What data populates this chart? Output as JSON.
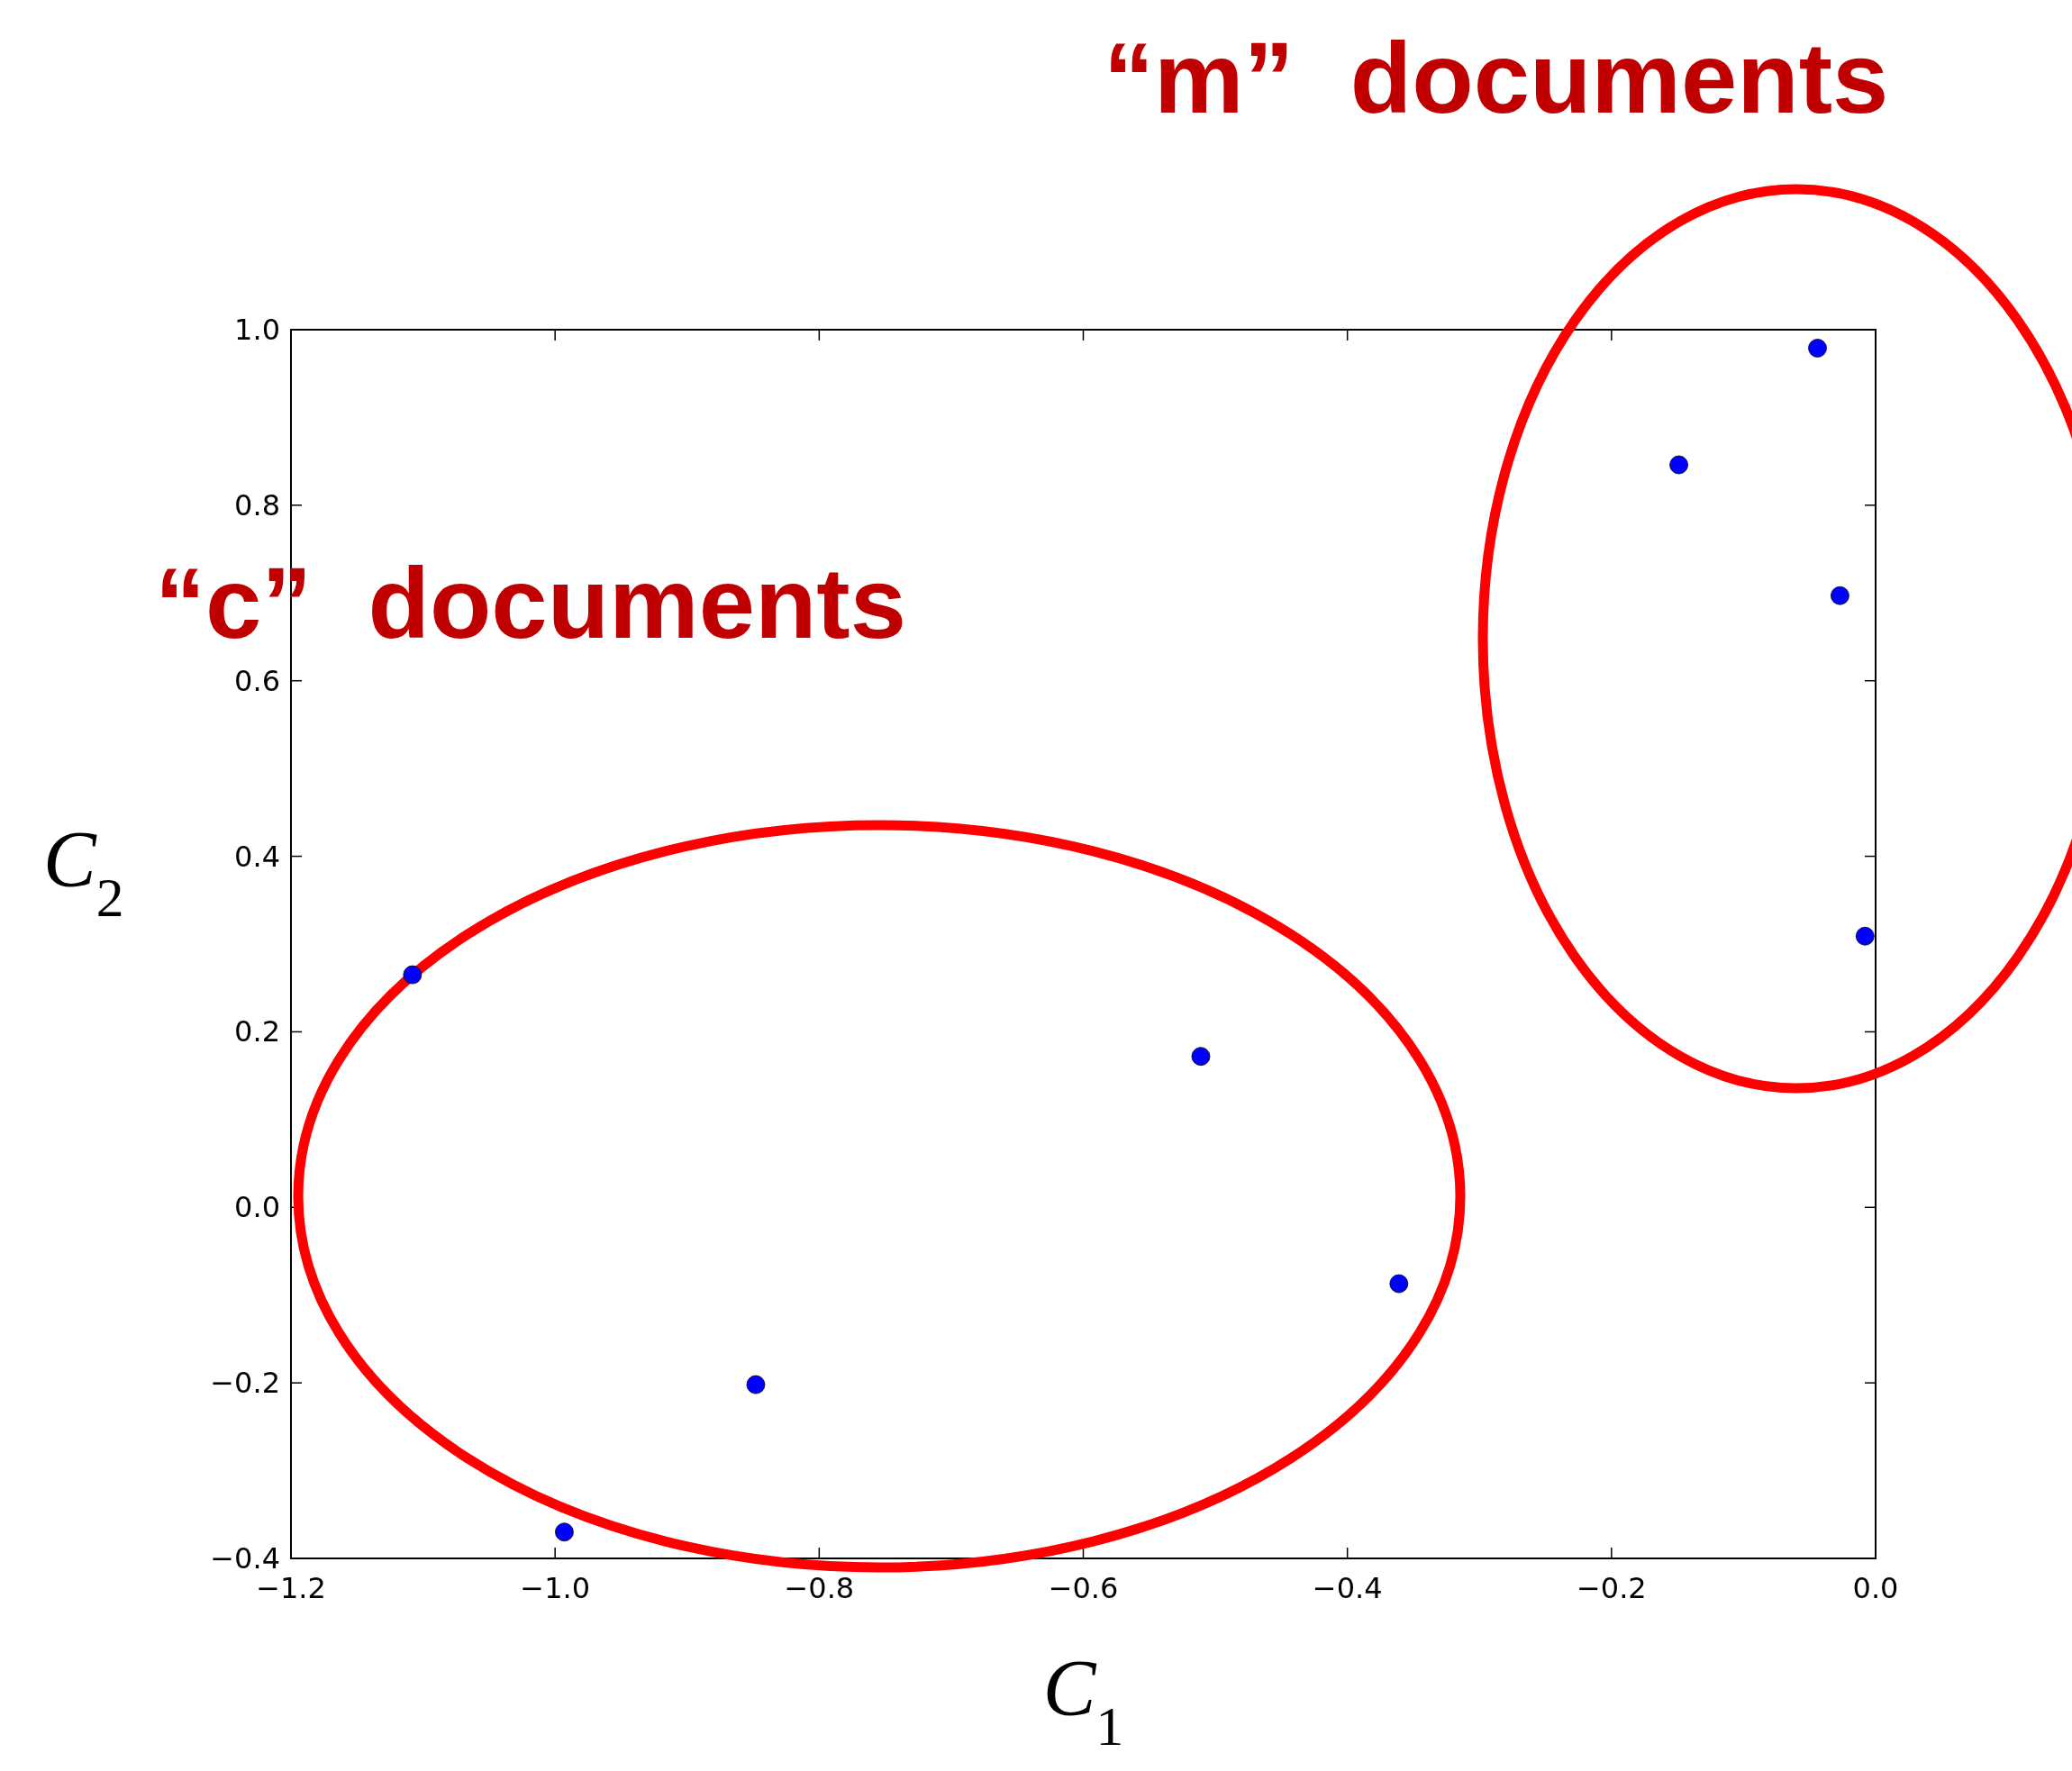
{
  "chart_data": {
    "type": "scatter",
    "xlabel": "C$_{1}$",
    "ylabel": "C$_{2}$",
    "x": [
      -1.108,
      -0.993,
      -0.848,
      -0.511,
      -0.361,
      -0.149,
      -0.044,
      -0.027,
      -0.008
    ],
    "series": [
      {
        "color": "#0000ff",
        "values": [
          0.265,
          -0.37,
          -0.202,
          0.172,
          -0.087,
          0.846,
          0.979,
          0.697,
          0.309
        ]
      }
    ],
    "marker": "circle",
    "grid": false,
    "xlim": [
      -1.2,
      0.0
    ],
    "ylim": [
      -0.4,
      1.0
    ],
    "xticks": [
      {
        "value": -1.2,
        "label": "−1.2"
      },
      {
        "value": -1.0,
        "label": "−1.0"
      },
      {
        "value": -0.8,
        "label": "−0.8"
      },
      {
        "value": -0.6,
        "label": "−0.6"
      },
      {
        "value": -0.4,
        "label": "−0.4"
      },
      {
        "value": -0.2,
        "label": "−0.2"
      },
      {
        "value": 0.0,
        "label": "0.0"
      }
    ],
    "yticks": [
      {
        "value": -0.4,
        "label": "−0.4"
      },
      {
        "value": -0.2,
        "label": "−0.2"
      },
      {
        "value": 0.0,
        "label": "0.0"
      },
      {
        "value": 0.2,
        "label": "0.2"
      },
      {
        "value": 0.4,
        "label": "0.4"
      },
      {
        "value": 0.6,
        "label": "0.6"
      },
      {
        "value": 0.8,
        "label": "0.8"
      },
      {
        "value": 1.0,
        "label": "1.0"
      }
    ],
    "annotations": [
      "“m”  documents",
      "“c”  documents"
    ]
  }
}
